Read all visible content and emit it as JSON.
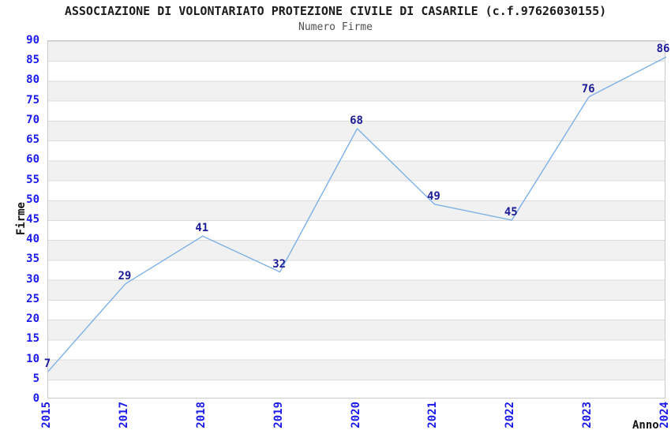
{
  "title": "ASSOCIAZIONE DI VOLONTARIATO PROTEZIONE CIVILE DI CASARILE (c.f.97626030155)",
  "subtitle": "Numero Firme",
  "y_axis": {
    "label": "Firme",
    "ticks": [
      0,
      5,
      10,
      15,
      20,
      25,
      30,
      35,
      40,
      45,
      50,
      55,
      60,
      65,
      70,
      75,
      80,
      85,
      90
    ]
  },
  "x_axis": {
    "label": "Anno"
  },
  "colors": {
    "line": "#7cb1e6",
    "value_label": "#1c1c99",
    "tick_label": "#1a1aee",
    "band_gray": "#f1f1f1",
    "band_white": "#ffffff",
    "gridline": "#dcdcdc",
    "plot_border": "#c9c9c9",
    "title": "#1c1c1c",
    "subtitle": "#4f4f4f"
  },
  "chart_data": {
    "type": "line",
    "title": "ASSOCIAZIONE DI VOLONTARIATO PROTEZIONE CIVILE DI CASARILE (c.f.97626030155)",
    "subtitle": "Numero Firme",
    "categories": [
      "2015",
      "2017",
      "2018",
      "2019",
      "2020",
      "2021",
      "2022",
      "2023",
      "2024"
    ],
    "values": [
      7,
      29,
      41,
      32,
      68,
      49,
      45,
      76,
      86
    ],
    "xlabel": "Anno",
    "ylabel": "Firme",
    "ylim": [
      0,
      90
    ],
    "ytick_step": 5,
    "grid": "on",
    "legend": "none",
    "markers": "none",
    "value_labels": "above-points",
    "x_tick_rotation": 90,
    "band_fill": "alternating-horizontal"
  }
}
